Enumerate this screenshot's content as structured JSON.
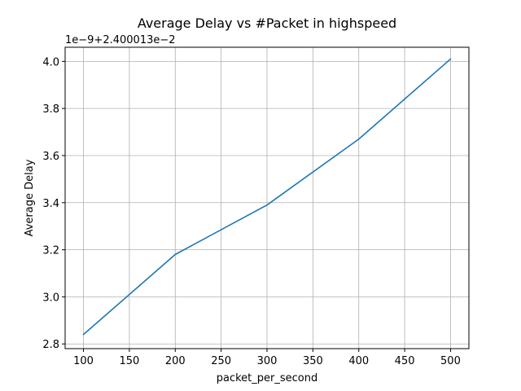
{
  "chart_data": {
    "type": "line",
    "title": "Average Delay vs #Packet in highspeed",
    "xlabel": "packet_per_second",
    "ylabel": "Average Delay",
    "offset_text": "1e−9+2.400013e−2",
    "x": [
      100,
      200,
      300,
      400,
      500
    ],
    "series": [
      {
        "values": [
          2.84,
          3.18,
          3.39,
          3.67,
          4.01
        ]
      }
    ],
    "xlim": [
      80,
      520
    ],
    "ylim": [
      2.78,
      4.06
    ],
    "xticks": [
      100,
      150,
      200,
      250,
      300,
      350,
      400,
      450,
      500
    ],
    "yticks": [
      2.8,
      3.0,
      3.2,
      3.4,
      3.6,
      3.8,
      4.0
    ],
    "ytick_labels": [
      "2.8",
      "3.0",
      "3.2",
      "3.4",
      "3.6",
      "3.8",
      "4.0"
    ],
    "grid": true,
    "line_color": "#1f77b4"
  }
}
